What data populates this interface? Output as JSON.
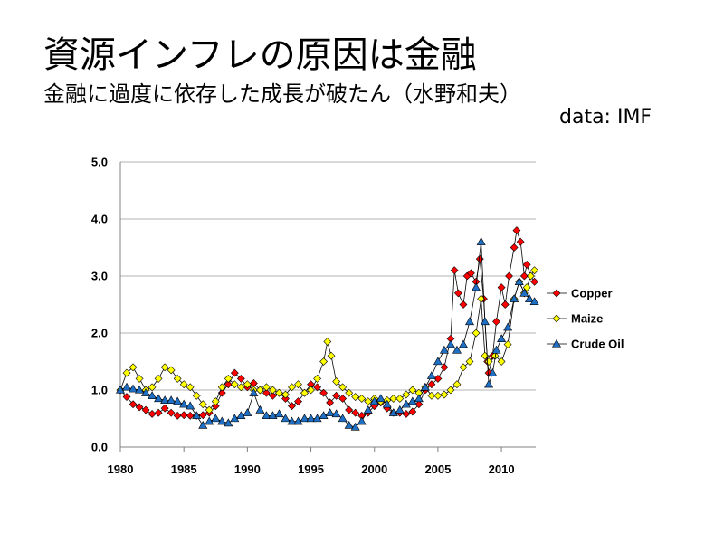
{
  "slide": {
    "title": "資源インフレの原因は金融",
    "subtitle": "金融に過度に依存した成長が破たん（水野和夫）",
    "source": "data:   IMF"
  },
  "chart_data": {
    "type": "line",
    "x_range": [
      1980,
      2012.7
    ],
    "ylim": [
      0,
      5
    ],
    "y_ticks": [
      "0.0",
      "1.0",
      "2.0",
      "3.0",
      "4.0",
      "5.0"
    ],
    "x_ticks": [
      "1980",
      "1985",
      "1990",
      "1995",
      "2000",
      "2005",
      "2010"
    ],
    "grid": true,
    "legend_position": "right",
    "series": [
      {
        "name": "Copper",
        "color": "#ff0000",
        "marker": "diamond",
        "points": [
          [
            1980.0,
            1.0
          ],
          [
            1980.5,
            0.88
          ],
          [
            1981.0,
            0.75
          ],
          [
            1981.5,
            0.7
          ],
          [
            1982.0,
            0.65
          ],
          [
            1982.5,
            0.58
          ],
          [
            1983.0,
            0.6
          ],
          [
            1983.5,
            0.68
          ],
          [
            1984.0,
            0.6
          ],
          [
            1984.5,
            0.55
          ],
          [
            1985.0,
            0.56
          ],
          [
            1985.5,
            0.55
          ],
          [
            1986.0,
            0.55
          ],
          [
            1986.5,
            0.56
          ],
          [
            1987.0,
            0.6
          ],
          [
            1987.5,
            0.72
          ],
          [
            1988.0,
            0.95
          ],
          [
            1988.5,
            1.1
          ],
          [
            1989.0,
            1.3
          ],
          [
            1989.5,
            1.2
          ],
          [
            1990.0,
            1.05
          ],
          [
            1990.5,
            1.12
          ],
          [
            1991.0,
            1.0
          ],
          [
            1991.5,
            0.95
          ],
          [
            1992.0,
            0.9
          ],
          [
            1992.5,
            0.95
          ],
          [
            1993.0,
            0.85
          ],
          [
            1993.5,
            0.72
          ],
          [
            1994.0,
            0.8
          ],
          [
            1994.5,
            0.95
          ],
          [
            1995.0,
            1.1
          ],
          [
            1995.5,
            1.05
          ],
          [
            1996.0,
            0.95
          ],
          [
            1996.5,
            0.78
          ],
          [
            1997.0,
            0.9
          ],
          [
            1997.5,
            0.85
          ],
          [
            1998.0,
            0.65
          ],
          [
            1998.5,
            0.6
          ],
          [
            1999.0,
            0.55
          ],
          [
            1999.5,
            0.6
          ],
          [
            2000.0,
            0.72
          ],
          [
            2000.5,
            0.78
          ],
          [
            2001.0,
            0.68
          ],
          [
            2001.5,
            0.6
          ],
          [
            2002.0,
            0.6
          ],
          [
            2002.5,
            0.58
          ],
          [
            2003.0,
            0.62
          ],
          [
            2003.5,
            0.75
          ],
          [
            2004.0,
            1.0
          ],
          [
            2004.5,
            1.1
          ],
          [
            2005.0,
            1.2
          ],
          [
            2005.5,
            1.4
          ],
          [
            2006.0,
            1.9
          ],
          [
            2006.3,
            3.1
          ],
          [
            2006.6,
            2.7
          ],
          [
            2007.0,
            2.5
          ],
          [
            2007.3,
            3.0
          ],
          [
            2007.6,
            3.05
          ],
          [
            2008.0,
            2.9
          ],
          [
            2008.3,
            3.3
          ],
          [
            2008.6,
            2.6
          ],
          [
            2008.9,
            1.5
          ],
          [
            2009.0,
            1.3
          ],
          [
            2009.3,
            1.6
          ],
          [
            2009.6,
            2.2
          ],
          [
            2010.0,
            2.8
          ],
          [
            2010.3,
            2.5
          ],
          [
            2010.6,
            3.0
          ],
          [
            2011.0,
            3.5
          ],
          [
            2011.2,
            3.8
          ],
          [
            2011.5,
            3.6
          ],
          [
            2011.8,
            3.0
          ],
          [
            2012.0,
            3.2
          ],
          [
            2012.3,
            3.0
          ],
          [
            2012.6,
            2.9
          ]
        ]
      },
      {
        "name": "Maize",
        "color": "#ffff00",
        "marker": "diamond",
        "points": [
          [
            1980.0,
            1.0
          ],
          [
            1980.5,
            1.3
          ],
          [
            1981.0,
            1.4
          ],
          [
            1981.5,
            1.2
          ],
          [
            1982.0,
            1.0
          ],
          [
            1982.5,
            1.05
          ],
          [
            1983.0,
            1.2
          ],
          [
            1983.5,
            1.4
          ],
          [
            1984.0,
            1.35
          ],
          [
            1984.5,
            1.2
          ],
          [
            1985.0,
            1.1
          ],
          [
            1985.5,
            1.05
          ],
          [
            1986.0,
            0.9
          ],
          [
            1986.5,
            0.75
          ],
          [
            1987.0,
            0.65
          ],
          [
            1987.5,
            0.8
          ],
          [
            1988.0,
            1.05
          ],
          [
            1988.5,
            1.2
          ],
          [
            1989.0,
            1.1
          ],
          [
            1989.5,
            1.05
          ],
          [
            1990.0,
            1.1
          ],
          [
            1990.5,
            1.0
          ],
          [
            1991.0,
            1.0
          ],
          [
            1991.5,
            1.05
          ],
          [
            1992.0,
            1.0
          ],
          [
            1992.5,
            0.95
          ],
          [
            1993.0,
            0.92
          ],
          [
            1993.5,
            1.05
          ],
          [
            1994.0,
            1.1
          ],
          [
            1994.5,
            0.95
          ],
          [
            1995.0,
            1.0
          ],
          [
            1995.5,
            1.2
          ],
          [
            1996.0,
            1.5
          ],
          [
            1996.3,
            1.85
          ],
          [
            1996.6,
            1.6
          ],
          [
            1997.0,
            1.15
          ],
          [
            1997.5,
            1.05
          ],
          [
            1998.0,
            0.95
          ],
          [
            1998.5,
            0.88
          ],
          [
            1999.0,
            0.85
          ],
          [
            1999.5,
            0.8
          ],
          [
            2000.0,
            0.85
          ],
          [
            2000.5,
            0.8
          ],
          [
            2001.0,
            0.82
          ],
          [
            2001.5,
            0.85
          ],
          [
            2002.0,
            0.85
          ],
          [
            2002.5,
            0.92
          ],
          [
            2003.0,
            1.0
          ],
          [
            2003.5,
            0.95
          ],
          [
            2004.0,
            1.05
          ],
          [
            2004.5,
            0.9
          ],
          [
            2005.0,
            0.9
          ],
          [
            2005.5,
            0.92
          ],
          [
            2006.0,
            1.0
          ],
          [
            2006.5,
            1.1
          ],
          [
            2007.0,
            1.4
          ],
          [
            2007.5,
            1.5
          ],
          [
            2008.0,
            2.0
          ],
          [
            2008.4,
            2.6
          ],
          [
            2008.7,
            1.6
          ],
          [
            2009.0,
            1.5
          ],
          [
            2009.5,
            1.6
          ],
          [
            2010.0,
            1.5
          ],
          [
            2010.5,
            1.8
          ],
          [
            2011.0,
            2.6
          ],
          [
            2011.4,
            2.9
          ],
          [
            2011.8,
            2.7
          ],
          [
            2012.0,
            2.8
          ],
          [
            2012.3,
            3.0
          ],
          [
            2012.6,
            3.1
          ]
        ]
      },
      {
        "name": "Crude Oil",
        "color": "#1f6fc5",
        "marker": "triangle",
        "points": [
          [
            1980.0,
            1.0
          ],
          [
            1980.5,
            1.05
          ],
          [
            1981.0,
            1.02
          ],
          [
            1981.5,
            1.0
          ],
          [
            1982.0,
            0.95
          ],
          [
            1982.5,
            0.9
          ],
          [
            1983.0,
            0.85
          ],
          [
            1983.5,
            0.82
          ],
          [
            1984.0,
            0.82
          ],
          [
            1984.5,
            0.8
          ],
          [
            1985.0,
            0.75
          ],
          [
            1985.5,
            0.72
          ],
          [
            1986.0,
            0.55
          ],
          [
            1986.5,
            0.38
          ],
          [
            1987.0,
            0.45
          ],
          [
            1987.5,
            0.5
          ],
          [
            1988.0,
            0.45
          ],
          [
            1988.5,
            0.42
          ],
          [
            1989.0,
            0.5
          ],
          [
            1989.5,
            0.55
          ],
          [
            1990.0,
            0.6
          ],
          [
            1990.5,
            0.95
          ],
          [
            1991.0,
            0.65
          ],
          [
            1991.5,
            0.55
          ],
          [
            1992.0,
            0.55
          ],
          [
            1992.5,
            0.58
          ],
          [
            1993.0,
            0.5
          ],
          [
            1993.5,
            0.45
          ],
          [
            1994.0,
            0.45
          ],
          [
            1994.5,
            0.5
          ],
          [
            1995.0,
            0.5
          ],
          [
            1995.5,
            0.5
          ],
          [
            1996.0,
            0.55
          ],
          [
            1996.5,
            0.6
          ],
          [
            1997.0,
            0.58
          ],
          [
            1997.5,
            0.5
          ],
          [
            1998.0,
            0.38
          ],
          [
            1998.5,
            0.35
          ],
          [
            1999.0,
            0.45
          ],
          [
            1999.5,
            0.65
          ],
          [
            2000.0,
            0.8
          ],
          [
            2000.5,
            0.85
          ],
          [
            2001.0,
            0.75
          ],
          [
            2001.5,
            0.6
          ],
          [
            2002.0,
            0.65
          ],
          [
            2002.5,
            0.75
          ],
          [
            2003.0,
            0.8
          ],
          [
            2003.5,
            0.85
          ],
          [
            2004.0,
            1.05
          ],
          [
            2004.5,
            1.25
          ],
          [
            2005.0,
            1.5
          ],
          [
            2005.5,
            1.7
          ],
          [
            2006.0,
            1.8
          ],
          [
            2006.5,
            1.7
          ],
          [
            2007.0,
            1.8
          ],
          [
            2007.5,
            2.2
          ],
          [
            2008.0,
            2.8
          ],
          [
            2008.4,
            3.6
          ],
          [
            2008.7,
            2.2
          ],
          [
            2009.0,
            1.1
          ],
          [
            2009.3,
            1.3
          ],
          [
            2009.6,
            1.7
          ],
          [
            2010.0,
            1.9
          ],
          [
            2010.5,
            2.1
          ],
          [
            2011.0,
            2.6
          ],
          [
            2011.4,
            2.9
          ],
          [
            2011.8,
            2.7
          ],
          [
            2012.2,
            2.6
          ],
          [
            2012.6,
            2.55
          ]
        ]
      }
    ]
  }
}
